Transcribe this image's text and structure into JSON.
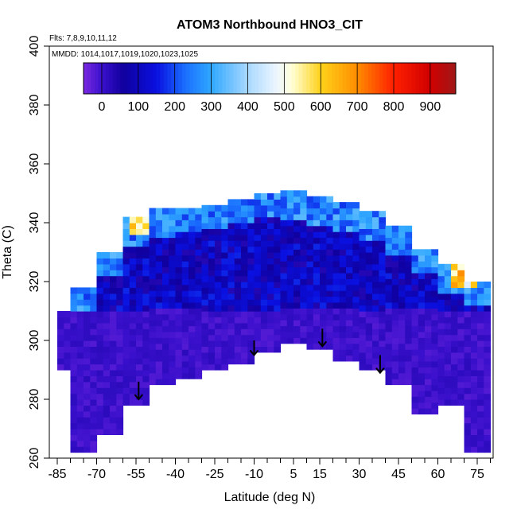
{
  "chart_data": {
    "type": "heatmap",
    "title": "ATOM3 Northbound HNO3_CIT",
    "flights_label": "Flts: 7,8,9,10,11,12",
    "dates_label": "MMDD: 1014,1017,1019,1020,1023,1025",
    "xlabel": "Latitude (deg N)",
    "ylabel": "Theta (C)",
    "xlim": [
      -85,
      85
    ],
    "ylim": [
      260,
      400
    ],
    "x_ticks": [
      -85,
      -70,
      -55,
      -40,
      -25,
      -10,
      5,
      15,
      30,
      45,
      60,
      75
    ],
    "y_ticks": [
      260,
      280,
      300,
      320,
      340,
      360,
      380,
      400
    ],
    "colorbar": {
      "min": -50,
      "max": 970,
      "ticks": [
        0,
        100,
        200,
        300,
        400,
        500,
        600,
        700,
        800,
        900
      ],
      "stops": [
        {
          "v": -50,
          "color": "#7a2ae0"
        },
        {
          "v": 0,
          "color": "#3a10cc"
        },
        {
          "v": 60,
          "color": "#10009e"
        },
        {
          "v": 150,
          "color": "#0a10e0"
        },
        {
          "v": 230,
          "color": "#1a70ff"
        },
        {
          "v": 300,
          "color": "#30a8ff"
        },
        {
          "v": 400,
          "color": "#a8d8ff"
        },
        {
          "v": 480,
          "color": "#eef6ff"
        },
        {
          "v": 520,
          "color": "#ffffd8"
        },
        {
          "v": 600,
          "color": "#ffd21a"
        },
        {
          "v": 700,
          "color": "#ff8c00"
        },
        {
          "v": 800,
          "color": "#ff2000"
        },
        {
          "v": 900,
          "color": "#d00000"
        },
        {
          "v": 970,
          "color": "#a01818"
        }
      ]
    },
    "coverage": {
      "lat_ranges": [
        {
          "lat_min": -85,
          "lat_max": -80,
          "theta_min": 290,
          "theta_max": 310
        },
        {
          "lat_min": -80,
          "lat_max": -70,
          "theta_min": 262,
          "theta_max": 318
        },
        {
          "lat_min": -70,
          "lat_max": -60,
          "theta_min": 268,
          "theta_max": 330
        },
        {
          "lat_min": -60,
          "lat_max": -50,
          "theta_min": 278,
          "theta_max": 341
        },
        {
          "lat_min": -50,
          "lat_max": -40,
          "theta_min": 285,
          "theta_max": 344
        },
        {
          "lat_min": -40,
          "lat_max": -30,
          "theta_min": 287,
          "theta_max": 345
        },
        {
          "lat_min": -30,
          "lat_max": -20,
          "theta_min": 290,
          "theta_max": 346
        },
        {
          "lat_min": -20,
          "lat_max": -10,
          "theta_min": 292,
          "theta_max": 348
        },
        {
          "lat_min": -10,
          "lat_max": 0,
          "theta_min": 296,
          "theta_max": 350
        },
        {
          "lat_min": 0,
          "lat_max": 10,
          "theta_min": 299,
          "theta_max": 350
        },
        {
          "lat_min": 10,
          "lat_max": 20,
          "theta_min": 297,
          "theta_max": 348
        },
        {
          "lat_min": 20,
          "lat_max": 30,
          "theta_min": 293,
          "theta_max": 346
        },
        {
          "lat_min": 30,
          "lat_max": 40,
          "theta_min": 290,
          "theta_max": 343
        },
        {
          "lat_min": 40,
          "lat_max": 50,
          "theta_min": 285,
          "theta_max": 338
        },
        {
          "lat_min": 50,
          "lat_max": 60,
          "theta_min": 275,
          "theta_max": 331
        },
        {
          "lat_min": 60,
          "lat_max": 70,
          "theta_min": 278,
          "theta_max": 325
        },
        {
          "lat_min": 70,
          "lat_max": 80,
          "theta_min": 262,
          "theta_max": 320
        }
      ]
    },
    "arrows": [
      {
        "lat": -54,
        "theta_from": 286,
        "theta_to": 280
      },
      {
        "lat": -10,
        "theta_from": 300,
        "theta_to": 295
      },
      {
        "lat": 16,
        "theta_from": 304,
        "theta_to": 298
      },
      {
        "lat": 38,
        "theta_from": 295,
        "theta_to": 289
      }
    ]
  }
}
